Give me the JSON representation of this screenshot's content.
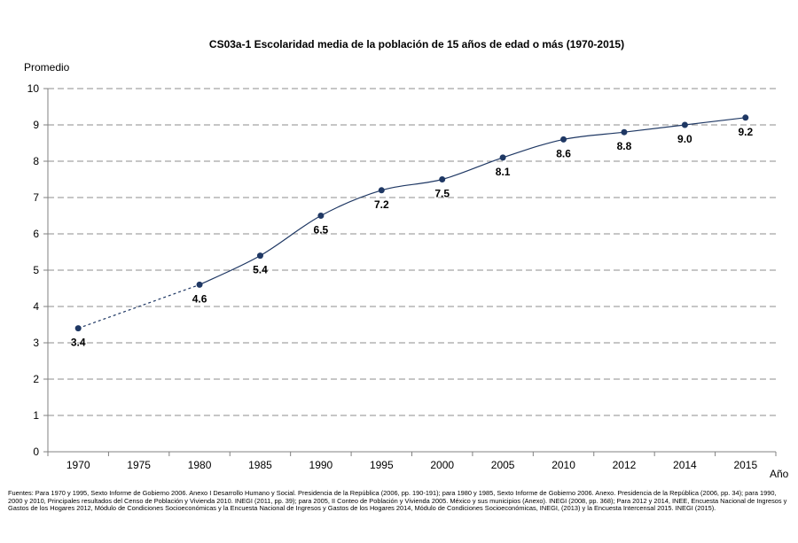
{
  "chart_data": {
    "type": "line",
    "title": "CS03a-1 Escolaridad media de la población de 15 años de edad o más (1970-2015)",
    "ylabel": "Promedio",
    "xlabel": "Año",
    "categories": [
      "1970",
      "1975",
      "1980",
      "1985",
      "1990",
      "1995",
      "2000",
      "2005",
      "2010",
      "2012",
      "2014",
      "2015"
    ],
    "ylim": [
      0,
      10
    ],
    "yticks": [
      "0",
      "1",
      "2",
      "3",
      "4",
      "5",
      "6",
      "7",
      "8",
      "9",
      "10"
    ],
    "grid": true,
    "series": [
      {
        "color": "#1f3864",
        "points": [
          {
            "x": "1970",
            "y": 3.4,
            "label": "3.4"
          },
          {
            "x": "1980",
            "y": 4.6,
            "label": "4.6"
          },
          {
            "x": "1985",
            "y": 5.4,
            "label": "5.4"
          },
          {
            "x": "1990",
            "y": 6.5,
            "label": "6.5"
          },
          {
            "x": "1995",
            "y": 7.2,
            "label": "7.2"
          },
          {
            "x": "2000",
            "y": 7.5,
            "label": "7.5"
          },
          {
            "x": "2005",
            "y": 8.1,
            "label": "8.1"
          },
          {
            "x": "2010",
            "y": 8.6,
            "label": "8.6"
          },
          {
            "x": "2012",
            "y": 8.8,
            "label": "8.8"
          },
          {
            "x": "2014",
            "y": 9.0,
            "label": "9.0"
          },
          {
            "x": "2015",
            "y": 9.2,
            "label": "9.2"
          }
        ],
        "dashed_segment": [
          "1970",
          "1980"
        ]
      }
    ]
  },
  "footer": {
    "sources": "Fuentes:  Para 1970 y 1995, Sexto Informe de Gobierno 2006. Anexo I Desarrollo Humano y Social. Presidencia de la República (2006, pp. 190-191); para 1980 y 1985, Sexto Informe de Gobierno 2006. Anexo. Presidencia de la República (2006, pp. 34); para 1990, 2000 y 2010, Principales resultados del Censo de Población y Vivienda 2010. INEGI (2011, pp. 39); para 2005, II Conteo de Población y Vivienda 2005. México y sus municipios (Anexo). INEGI (2008, pp. 368); Para 2012 y 2014, INEE, Encuesta Nacional de Ingresos y Gastos de los Hogares 2012, Módulo de Condiciones Socioeconómicas y la Encuesta Nacional de Ingresos y Gastos de los Hogares 2014, Módulo de Condiciones Socioeconómicas, INEGI, (2013) y la Encuesta Intercensal 2015. INEGI (2015)."
  }
}
